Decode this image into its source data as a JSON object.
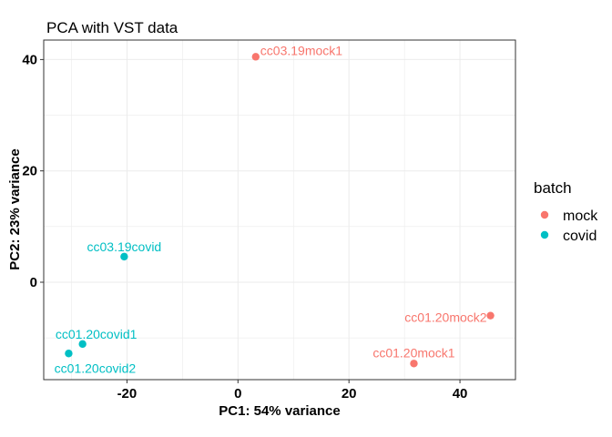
{
  "chart_data": {
    "type": "scatter",
    "title": "PCA with VST data",
    "xlabel": "PC1: 54% variance",
    "ylabel": "PC2: 23% variance",
    "xlim": [
      -35,
      50
    ],
    "ylim": [
      -17.5,
      43.5
    ],
    "x_ticks": [
      -20,
      0,
      20,
      40
    ],
    "y_ticks": [
      0,
      20,
      40
    ],
    "grid": true,
    "legend": {
      "title": "batch",
      "placement": "right",
      "entries": [
        {
          "label": "mock",
          "color": "#F8766D"
        },
        {
          "label": "covid",
          "color": "#00BFC4"
        }
      ]
    },
    "series": [
      {
        "name": "mock",
        "color": "#F8766D",
        "points": [
          {
            "label": "cc03.19mock1",
            "x": 3.2,
            "y": 40.5
          },
          {
            "label": "cc01.20mock2",
            "x": 45.5,
            "y": -6.0
          },
          {
            "label": "cc01.20mock1",
            "x": 31.7,
            "y": -14.6
          }
        ]
      },
      {
        "name": "covid",
        "color": "#00BFC4",
        "points": [
          {
            "label": "cc03.19covid",
            "x": -20.5,
            "y": 4.6
          },
          {
            "label": "cc01.20covid1",
            "x": -28.0,
            "y": -11.1
          },
          {
            "label": "cc01.20covid2",
            "x": -30.5,
            "y": -12.8
          }
        ]
      }
    ]
  }
}
